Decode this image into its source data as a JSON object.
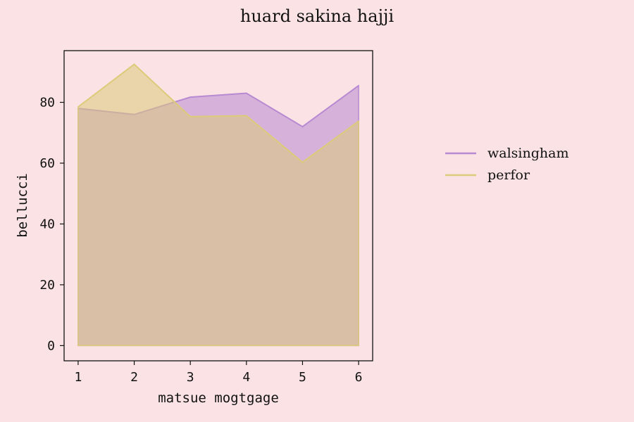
{
  "chart_data": {
    "type": "area",
    "title": "huard sakina hajji",
    "xlabel": "matsue mogtgage",
    "ylabel": "bellucci",
    "x": [
      1,
      2,
      3,
      4,
      5,
      6
    ],
    "xlim": [
      0.75,
      6.25
    ],
    "ylim": [
      -5,
      97
    ],
    "xticks": [
      1,
      2,
      3,
      4,
      5,
      6
    ],
    "yticks": [
      0,
      20,
      40,
      60,
      80
    ],
    "grid": false,
    "legend_position": "right",
    "series": [
      {
        "name": "walsingham",
        "values": [
          78,
          76,
          81.7,
          83,
          72,
          85.5
        ],
        "color": "#b88ad2"
      },
      {
        "name": "perfor",
        "values": [
          78.5,
          92.5,
          75.3,
          75.6,
          60.3,
          73.8
        ],
        "color": "#dccb7a"
      }
    ]
  }
}
